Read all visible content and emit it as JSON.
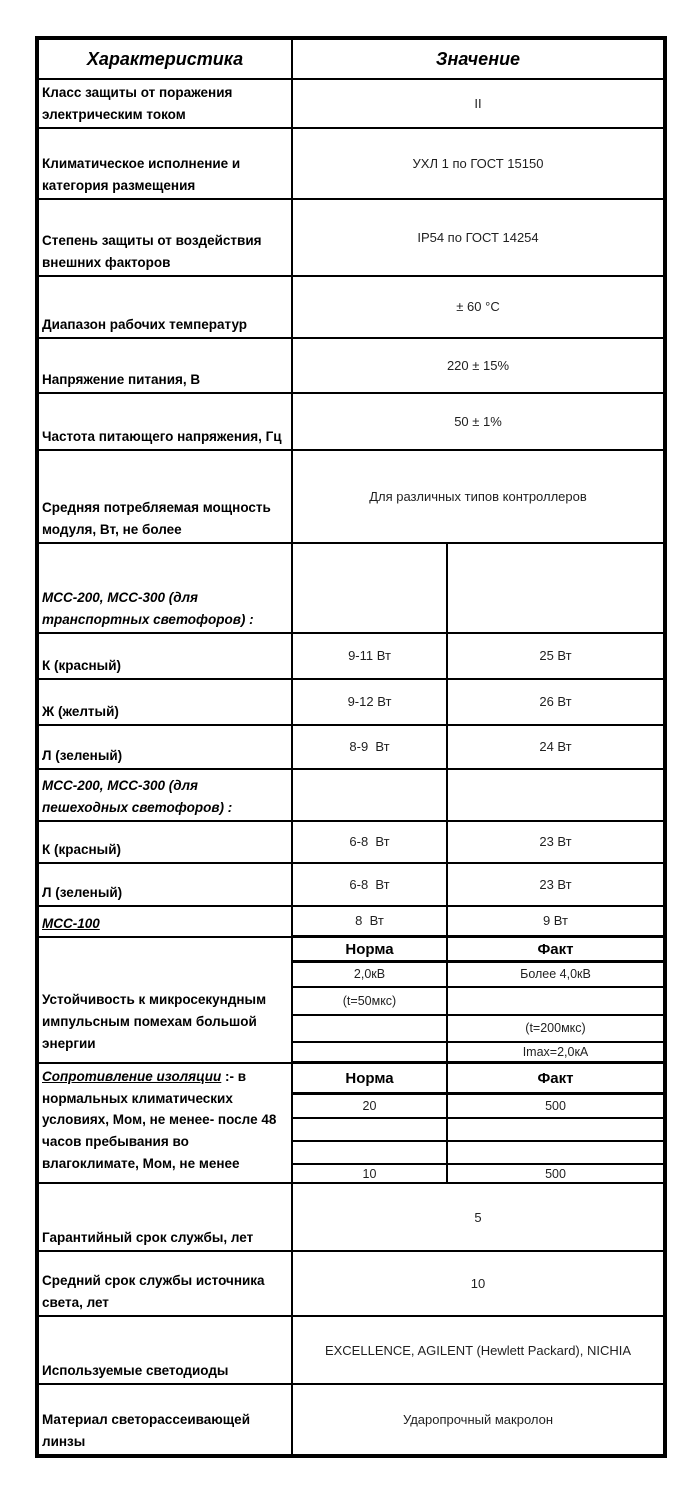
{
  "table": {
    "header": {
      "characteristic": "Характеристика",
      "value": "Значение"
    },
    "rows": [
      {
        "kind": "full",
        "label": "Класс защиты от поражения электрическим током",
        "value": "II"
      },
      {
        "kind": "full",
        "label": "Климатическое исполнение и категория размещения",
        "value": "УХЛ 1 по ГОСТ 15150"
      },
      {
        "kind": "full",
        "label": "Степень защиты от воздействия внешних факторов",
        "value": "IP54 по ГОСТ 14254"
      },
      {
        "kind": "full",
        "label": "Диапазон рабочих температур",
        "value": "± 60 °C"
      },
      {
        "kind": "full",
        "label": "Напряжение питания, В",
        "value": "220 ± 15%"
      },
      {
        "kind": "full",
        "label": "Частота питающего напряжения, Гц",
        "value": "50 ± 1%"
      },
      {
        "kind": "full",
        "label": "Средняя потребляемая мощность модуля, Вт, не более",
        "value": "Для различных типов контроллеров"
      },
      {
        "kind": "split",
        "label_rich": [
          {
            "t": "МСС-200, МСС-300 (для транспортных светофоров) :",
            "i": true
          }
        ],
        "cells": [
          "",
          ""
        ]
      },
      {
        "kind": "split",
        "label": "К (красный)",
        "cells": [
          "9-11 Вт",
          "25 Вт"
        ]
      },
      {
        "kind": "split",
        "label": "Ж (желтый)",
        "cells": [
          "9-12 Вт",
          "26 Вт"
        ]
      },
      {
        "kind": "split",
        "label": "Л (зеленый)",
        "cells": [
          "8-9  Вт",
          "24 Вт"
        ]
      },
      {
        "kind": "split",
        "label_rich": [
          {
            "t": "МСС-200, МСС-300 (для пешеходных светофоров) :",
            "i": true
          }
        ],
        "cells": [
          "",
          ""
        ]
      },
      {
        "kind": "split",
        "label": "К (красный)",
        "cells": [
          "6-8  Вт",
          "23 Вт"
        ]
      },
      {
        "kind": "split",
        "label": "Л (зеленый)",
        "cells": [
          "6-8  Вт",
          "23 Вт"
        ]
      },
      {
        "kind": "split",
        "label_rich": [
          {
            "t": "МСС-100",
            "i": true,
            "u": true
          }
        ],
        "cells": [
          "8  Вт",
          "9 Вт"
        ]
      },
      {
        "kind": "section",
        "label": "Устойчивость к микросекундным импульсным помехам большой энергии",
        "subrows": [
          {
            "a": "Норма",
            "b": "Факт",
            "header": true
          },
          {
            "a": "2,0кВ",
            "b": "Более 4,0кВ"
          },
          {
            "a": "(t=50мкс)",
            "b": ""
          },
          {
            "a": "",
            "b": "(t=200мкс)"
          },
          {
            "a": "",
            "b": "Imax=2,0кА"
          }
        ]
      },
      {
        "kind": "section",
        "label_rich": [
          {
            "t": "Сопротивление изоляции",
            "i": true,
            "u": true
          },
          {
            "t": " :- в нормальных климатических условиях, Мом, не менее- после 48 часов пребывания во влагоклимате, Мом, не менее"
          }
        ],
        "subrows": [
          {
            "a": "Норма",
            "b": "Факт",
            "header": true
          },
          {
            "a": "20",
            "b": "500"
          },
          {
            "a": "",
            "b": ""
          },
          {
            "a": "",
            "b": ""
          },
          {
            "a": "10",
            "b": "500"
          }
        ]
      },
      {
        "kind": "full",
        "label": "Гарантийный срок службы, лет",
        "value": "5"
      },
      {
        "kind": "full",
        "label": "Средний срок службы источника света, лет",
        "value": "10"
      },
      {
        "kind": "full",
        "label": "Используемые светодиоды",
        "value": "EXCELLENCE, AGILENT (Hewlett Packard), NICHIA"
      },
      {
        "kind": "full",
        "label": "Материал светорассеивающей линзы",
        "value": "Ударопрочный макролон"
      }
    ]
  }
}
